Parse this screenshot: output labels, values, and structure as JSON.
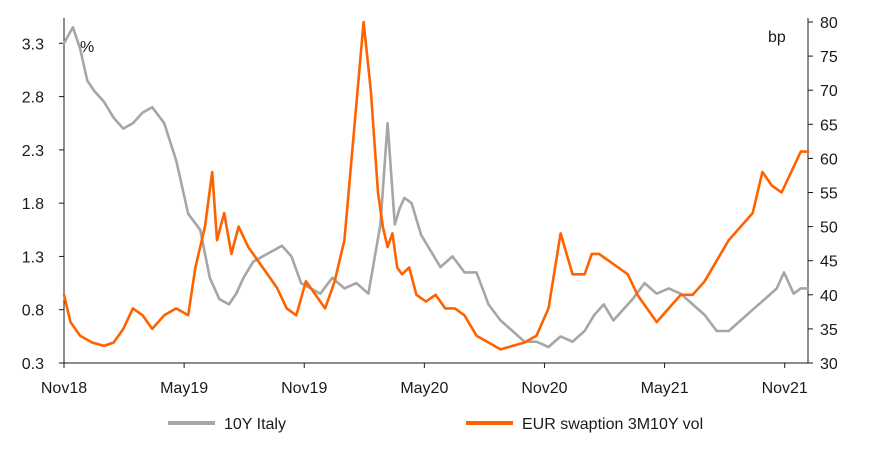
{
  "chart_data": {
    "type": "line",
    "title": "",
    "xlabel": "",
    "ylabel": "%",
    "y2label": "bp",
    "x_ticks": [
      "Nov18",
      "May19",
      "Nov19",
      "May20",
      "Nov20",
      "May21",
      "Nov21"
    ],
    "ylim": [
      0.3,
      3.5
    ],
    "y_ticks": [
      "0.3",
      "0.8",
      "1.3",
      "1.8",
      "2.3",
      "2.8",
      "3.3"
    ],
    "y2lim": [
      30,
      80
    ],
    "y2_ticks": [
      "30",
      "35",
      "40",
      "45",
      "50",
      "55",
      "60",
      "65",
      "70",
      "75",
      "80"
    ],
    "grid": false,
    "legend_position": "bottom",
    "colors": {
      "italy": "#a6a6a6",
      "swaption": "#ff6200",
      "axis": "#1a1a1a"
    },
    "series": [
      {
        "name": "10Y Italy",
        "axis": "left",
        "x": [
          2018.833,
          2018.87,
          2018.9,
          2018.93,
          2018.96,
          2019.0,
          2019.04,
          2019.08,
          2019.12,
          2019.16,
          2019.2,
          2019.25,
          2019.3,
          2019.35,
          2019.4,
          2019.44,
          2019.48,
          2019.52,
          2019.55,
          2019.58,
          2019.62,
          2019.66,
          2019.7,
          2019.74,
          2019.78,
          2019.82,
          2019.86,
          2019.9,
          2019.95,
          2020.0,
          2020.05,
          2020.1,
          2020.15,
          2020.18,
          2020.21,
          2020.23,
          2020.25,
          2020.28,
          2020.32,
          2020.36,
          2020.4,
          2020.45,
          2020.5,
          2020.55,
          2020.6,
          2020.65,
          2020.7,
          2020.75,
          2020.8,
          2020.85,
          2020.9,
          2020.95,
          2021.0,
          2021.04,
          2021.08,
          2021.12,
          2021.16,
          2021.2,
          2021.25,
          2021.3,
          2021.35,
          2021.4,
          2021.45,
          2021.5,
          2021.55,
          2021.6,
          2021.65,
          2021.7,
          2021.75,
          2021.8,
          2021.83,
          2021.87,
          2021.9,
          2021.93
        ],
        "values": [
          3.3,
          3.45,
          3.25,
          2.95,
          2.85,
          2.75,
          2.6,
          2.5,
          2.55,
          2.65,
          2.7,
          2.55,
          2.2,
          1.7,
          1.55,
          1.1,
          0.9,
          0.85,
          0.95,
          1.1,
          1.25,
          1.3,
          1.35,
          1.4,
          1.3,
          1.05,
          1.0,
          0.95,
          1.1,
          1.0,
          1.05,
          0.95,
          1.6,
          2.55,
          1.6,
          1.75,
          1.85,
          1.8,
          1.5,
          1.35,
          1.2,
          1.3,
          1.15,
          1.15,
          0.85,
          0.7,
          0.6,
          0.5,
          0.5,
          0.45,
          0.55,
          0.5,
          0.6,
          0.75,
          0.85,
          0.7,
          0.8,
          0.9,
          1.05,
          0.95,
          1.0,
          0.95,
          0.85,
          0.75,
          0.6,
          0.6,
          0.7,
          0.8,
          0.9,
          1.0,
          1.15,
          0.95,
          1.0,
          1.0
        ]
      },
      {
        "name": "EUR swaption 3M10Y vol",
        "axis": "right",
        "x": [
          2018.833,
          2018.86,
          2018.9,
          2018.95,
          2019.0,
          2019.04,
          2019.08,
          2019.12,
          2019.16,
          2019.2,
          2019.25,
          2019.3,
          2019.35,
          2019.38,
          2019.42,
          2019.45,
          2019.47,
          2019.5,
          2019.53,
          2019.56,
          2019.6,
          2019.64,
          2019.68,
          2019.72,
          2019.76,
          2019.8,
          2019.84,
          2019.88,
          2019.92,
          2019.96,
          2020.0,
          2020.04,
          2020.08,
          2020.11,
          2020.14,
          2020.16,
          2020.18,
          2020.2,
          2020.22,
          2020.24,
          2020.27,
          2020.3,
          2020.34,
          2020.38,
          2020.42,
          2020.46,
          2020.5,
          2020.55,
          2020.6,
          2020.65,
          2020.7,
          2020.75,
          2020.8,
          2020.85,
          2020.9,
          2020.95,
          2021.0,
          2021.03,
          2021.06,
          2021.1,
          2021.14,
          2021.18,
          2021.22,
          2021.26,
          2021.3,
          2021.35,
          2021.4,
          2021.45,
          2021.5,
          2021.55,
          2021.6,
          2021.65,
          2021.7,
          2021.74,
          2021.78,
          2021.82,
          2021.86,
          2021.9,
          2021.93
        ],
        "values": [
          40,
          36,
          34,
          33,
          32.5,
          33,
          35,
          38,
          37,
          35,
          37,
          38,
          37,
          44,
          50,
          58,
          48,
          52,
          46,
          50,
          47,
          45,
          43,
          41,
          38,
          37,
          42,
          40,
          38,
          42,
          48,
          64,
          80,
          70,
          55,
          50,
          47,
          49,
          44,
          43,
          44,
          40,
          39,
          40,
          38,
          38,
          37,
          34,
          33,
          32,
          32.5,
          33,
          34,
          38,
          49,
          43,
          43,
          46,
          46,
          45,
          44,
          43,
          40,
          38,
          36,
          38,
          40,
          40,
          42,
          45,
          48,
          50,
          52,
          58,
          56,
          55,
          58,
          61,
          61
        ]
      }
    ]
  },
  "legend": {
    "items": [
      "10Y Italy",
      "EUR swaption 3M10Y vol"
    ]
  }
}
